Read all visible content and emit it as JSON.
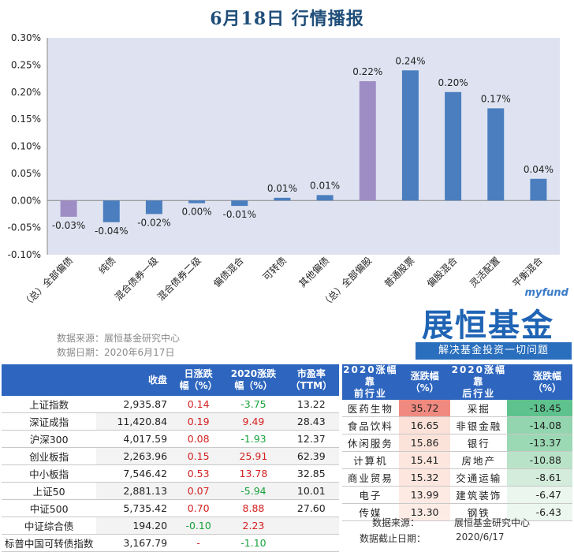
{
  "title": "6月18日  行情播报",
  "colors": {
    "bar": "#4a7ebf",
    "highlight": "#9e8dc4",
    "plot_bg": "#dfe3f1"
  },
  "chart_data": {
    "type": "bar",
    "categories": [
      "（总）全部偏债",
      "纯债",
      "混合债券一级",
      "混合债券二级",
      "偏债混合",
      "可转债",
      "其他偏债",
      "（总）全部偏股",
      "普通股票",
      "偏股混合",
      "灵活配置",
      "平衡混合"
    ],
    "values": [
      -0.03,
      -0.04,
      -0.025,
      -0.005,
      -0.01,
      0.005,
      0.01,
      0.22,
      0.24,
      0.2,
      0.17,
      0.04
    ],
    "data_labels": [
      "-0.03%",
      "-0.04%",
      "-0.02%",
      "0.00%",
      "-0.01%",
      "0.01%",
      "0.01%",
      "0.22%",
      "0.24%",
      "0.20%",
      "0.17%",
      "0.04%"
    ],
    "highlighted": [
      "（总）全部偏债",
      "（总）全部偏股"
    ],
    "yticks": [
      "0.30%",
      "0.25%",
      "0.20%",
      "0.15%",
      "0.10%",
      "0.05%",
      "0.00%",
      "-0.05%",
      "-0.10%"
    ],
    "ylim": [
      -0.1,
      0.3
    ],
    "grid": false
  },
  "source_lines": [
    "数据来源：展恒基金研究中心",
    "数据日期：2020年6月17日"
  ],
  "logo": {
    "small": "myfund",
    "big": "展恒基金",
    "slogan": "解决基金投资一切问题"
  },
  "index_table": {
    "headers": [
      "",
      "收盘",
      "日涨跌\n幅（%）",
      "2020涨跌\n幅（%）",
      "市盈率\n（TTM）"
    ],
    "rows": [
      {
        "name": "上证指数",
        "close": "2,935.87",
        "day": "0.14",
        "ytd": "-3.75",
        "pe": "13.22",
        "day_sign": "red",
        "ytd_sign": "green"
      },
      {
        "name": "深证成指",
        "close": "11,420.84",
        "day": "0.19",
        "ytd": "9.49",
        "pe": "28.43",
        "day_sign": "red",
        "ytd_sign": "red"
      },
      {
        "name": "沪深300",
        "close": "4,017.59",
        "day": "0.08",
        "ytd": "-1.93",
        "pe": "12.37",
        "day_sign": "red",
        "ytd_sign": "green"
      },
      {
        "name": "创业板指",
        "close": "2,263.96",
        "day": "0.15",
        "ytd": "25.91",
        "pe": "62.39",
        "day_sign": "red",
        "ytd_sign": "red"
      },
      {
        "name": "中小板指",
        "close": "7,546.42",
        "day": "0.53",
        "ytd": "13.78",
        "pe": "32.85",
        "day_sign": "red",
        "ytd_sign": "red"
      },
      {
        "name": "上证50",
        "close": "2,881.13",
        "day": "0.07",
        "ytd": "-5.94",
        "pe": "10.01",
        "day_sign": "red",
        "ytd_sign": "green"
      },
      {
        "name": "中证500",
        "close": "5,735.42",
        "day": "0.70",
        "ytd": "8.88",
        "pe": "27.60",
        "day_sign": "red",
        "ytd_sign": "red"
      },
      {
        "name": "中证综合债",
        "close": "194.20",
        "day": "-0.10",
        "ytd": "2.23",
        "pe": "",
        "day_sign": "green",
        "ytd_sign": "red"
      },
      {
        "name": "标普中国可转债指数",
        "close": "3,167.79",
        "day": "-",
        "ytd": "-1.10",
        "pe": "",
        "day_sign": "dash",
        "ytd_sign": "green"
      }
    ]
  },
  "industry_table": {
    "headers": [
      "2020涨幅靠\n前行业",
      "涨跌幅\n（%）",
      "2020涨幅靠\n后行业",
      "涨跌幅\n（%）"
    ],
    "rows": [
      {
        "up_name": "医药生物",
        "up_val": "35.72",
        "down_name": "采掘",
        "down_val": "-18.45",
        "up_bg": "#f08a80",
        "down_bg": "#5dc28e"
      },
      {
        "up_name": "食品饮料",
        "up_val": "16.65",
        "down_name": "非银金融",
        "down_val": "-14.08",
        "up_bg": "#fbe1d8",
        "down_bg": "#92d5ae"
      },
      {
        "up_name": "休闲服务",
        "up_val": "15.86",
        "down_name": "银行",
        "down_val": "-13.37",
        "up_bg": "#fbe3da",
        "down_bg": "#9bd8b4"
      },
      {
        "up_name": "计算机",
        "up_val": "15.41",
        "down_name": "房地产",
        "down_val": "-10.88",
        "up_bg": "#fce6de",
        "down_bg": "#b9e3c8"
      },
      {
        "up_name": "商业贸易",
        "up_val": "15.32",
        "down_name": "交通运输",
        "down_val": "-8.61",
        "up_bg": "#fce6de",
        "down_bg": "#d3ecdc"
      },
      {
        "up_name": "电子",
        "up_val": "13.99",
        "down_name": "建筑装饰",
        "down_val": "-6.47",
        "up_bg": "#fdeae3",
        "down_bg": "#eaf6ee"
      },
      {
        "up_name": "传媒",
        "up_val": "13.30",
        "down_name": "钢铁",
        "down_val": "-6.43",
        "up_bg": "#fdece6",
        "down_bg": "#ecf7f0"
      }
    ]
  },
  "footer": {
    "source": "数据来源：",
    "source_val": "展恒基金研究中心",
    "date": "数据截止日期：",
    "date_val": "2020/6/17"
  }
}
